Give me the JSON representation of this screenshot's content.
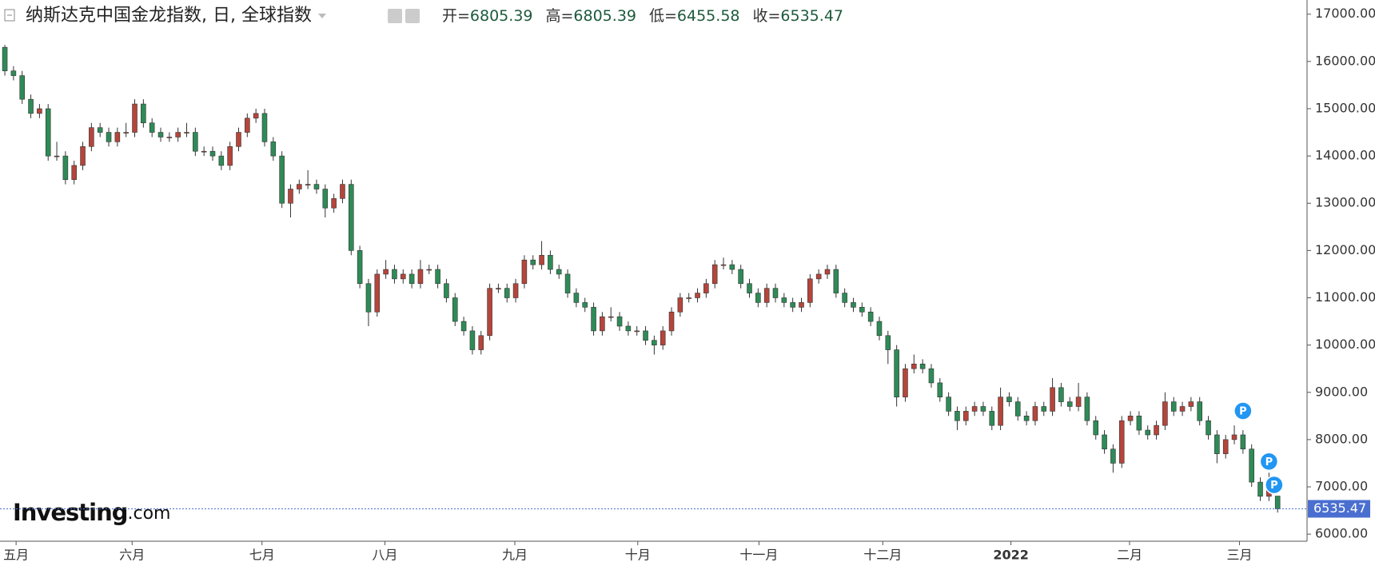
{
  "chart_data": {
    "type": "candlestick",
    "title": "纳斯达克中国金龙指数, 日, 全球指数",
    "ohlc_labels": [
      "开=",
      "高=",
      "低=",
      "收="
    ],
    "watermark": [
      "Investing",
      ".com"
    ],
    "up_color": "#b5453b",
    "down_color": "#2e8b57",
    "ohlc": [
      [
        16300,
        16350,
        15700,
        15800
      ],
      [
        15800,
        15900,
        15600,
        15700
      ],
      [
        15700,
        15800,
        15100,
        15200
      ],
      [
        15200,
        15300,
        14800,
        14900
      ],
      [
        14900,
        15100,
        14800,
        15000
      ],
      [
        15000,
        15100,
        13900,
        14000
      ],
      [
        14000,
        14300,
        13900,
        14000
      ],
      [
        14000,
        14100,
        13400,
        13500
      ],
      [
        13500,
        13900,
        13400,
        13800
      ],
      [
        13800,
        14300,
        13700,
        14200
      ],
      [
        14200,
        14700,
        14100,
        14600
      ],
      [
        14600,
        14700,
        14400,
        14500
      ],
      [
        14500,
        14600,
        14200,
        14300
      ],
      [
        14300,
        14600,
        14200,
        14500
      ],
      [
        14500,
        14700,
        14400,
        14500
      ],
      [
        14500,
        15200,
        14400,
        15100
      ],
      [
        15100,
        15200,
        14600,
        14700
      ],
      [
        14700,
        14800,
        14400,
        14500
      ],
      [
        14500,
        14600,
        14300,
        14400
      ],
      [
        14400,
        14500,
        14300,
        14400
      ],
      [
        14400,
        14600,
        14300,
        14500
      ],
      [
        14500,
        14700,
        14400,
        14500
      ],
      [
        14500,
        14600,
        14000,
        14100
      ],
      [
        14100,
        14200,
        14000,
        14100
      ],
      [
        14100,
        14200,
        13900,
        14000
      ],
      [
        14000,
        14100,
        13700,
        13800
      ],
      [
        13800,
        14300,
        13700,
        14200
      ],
      [
        14200,
        14600,
        14100,
        14500
      ],
      [
        14500,
        14900,
        14400,
        14800
      ],
      [
        14800,
        15000,
        14700,
        14900
      ],
      [
        14900,
        15000,
        14200,
        14300
      ],
      [
        14300,
        14400,
        13900,
        14000
      ],
      [
        14000,
        14100,
        12900,
        13000
      ],
      [
        13000,
        13400,
        12700,
        13300
      ],
      [
        13300,
        13500,
        13200,
        13400
      ],
      [
        13400,
        13700,
        13300,
        13400
      ],
      [
        13400,
        13500,
        13200,
        13300
      ],
      [
        13300,
        13400,
        12700,
        12900
      ],
      [
        12900,
        13200,
        12800,
        13100
      ],
      [
        13100,
        13500,
        13000,
        13400
      ],
      [
        13400,
        13500,
        11900,
        12000
      ],
      [
        12000,
        12100,
        11200,
        11300
      ],
      [
        11300,
        11400,
        10400,
        10700
      ],
      [
        10700,
        11600,
        10600,
        11500
      ],
      [
        11500,
        11800,
        11400,
        11600
      ],
      [
        11600,
        11700,
        11300,
        11400
      ],
      [
        11400,
        11600,
        11300,
        11500
      ],
      [
        11500,
        11600,
        11200,
        11300
      ],
      [
        11300,
        11800,
        11200,
        11600
      ],
      [
        11600,
        11700,
        11500,
        11600
      ],
      [
        11600,
        11700,
        11200,
        11300
      ],
      [
        11300,
        11400,
        10900,
        11000
      ],
      [
        11000,
        11100,
        10400,
        10500
      ],
      [
        10500,
        10600,
        10200,
        10300
      ],
      [
        10300,
        10400,
        9800,
        9900
      ],
      [
        9900,
        10300,
        9800,
        10200
      ],
      [
        10200,
        11300,
        10100,
        11200
      ],
      [
        11200,
        11300,
        11100,
        11200
      ],
      [
        11200,
        11300,
        10900,
        11000
      ],
      [
        11000,
        11400,
        10900,
        11300
      ],
      [
        11300,
        11900,
        11200,
        11800
      ],
      [
        11800,
        11900,
        11600,
        11700
      ],
      [
        11700,
        12200,
        11600,
        11900
      ],
      [
        11900,
        12000,
        11500,
        11600
      ],
      [
        11600,
        11700,
        11400,
        11500
      ],
      [
        11500,
        11600,
        11000,
        11100
      ],
      [
        11100,
        11200,
        10800,
        10900
      ],
      [
        10900,
        11000,
        10700,
        10800
      ],
      [
        10800,
        10900,
        10200,
        10300
      ],
      [
        10300,
        10700,
        10200,
        10600
      ],
      [
        10600,
        10800,
        10500,
        10600
      ],
      [
        10600,
        10700,
        10300,
        10400
      ],
      [
        10400,
        10500,
        10200,
        10300
      ],
      [
        10300,
        10400,
        10200,
        10300
      ],
      [
        10300,
        10400,
        10000,
        10100
      ],
      [
        10100,
        10200,
        9800,
        10000
      ],
      [
        10000,
        10400,
        9900,
        10300
      ],
      [
        10300,
        10800,
        10200,
        10700
      ],
      [
        10700,
        11100,
        10600,
        11000
      ],
      [
        11000,
        11100,
        10900,
        11000
      ],
      [
        11000,
        11200,
        10900,
        11100
      ],
      [
        11100,
        11400,
        11000,
        11300
      ],
      [
        11300,
        11800,
        11200,
        11700
      ],
      [
        11700,
        11850,
        11600,
        11700
      ],
      [
        11700,
        11800,
        11500,
        11600
      ],
      [
        11600,
        11700,
        11200,
        11300
      ],
      [
        11300,
        11400,
        11000,
        11100
      ],
      [
        11100,
        11200,
        10800,
        10900
      ],
      [
        10900,
        11300,
        10800,
        11200
      ],
      [
        11200,
        11300,
        10900,
        11000
      ],
      [
        11000,
        11100,
        10800,
        10900
      ],
      [
        10900,
        11000,
        10700,
        10800
      ],
      [
        10800,
        11000,
        10700,
        10900
      ],
      [
        10900,
        11500,
        10800,
        11400
      ],
      [
        11400,
        11600,
        11300,
        11500
      ],
      [
        11500,
        11700,
        11400,
        11600
      ],
      [
        11600,
        11700,
        11000,
        11100
      ],
      [
        11100,
        11200,
        10800,
        10900
      ],
      [
        10900,
        11000,
        10700,
        10800
      ],
      [
        10800,
        10900,
        10600,
        10700
      ],
      [
        10700,
        10800,
        10400,
        10500
      ],
      [
        10500,
        10600,
        10100,
        10200
      ],
      [
        10200,
        10300,
        9600,
        9900
      ],
      [
        9900,
        10000,
        8700,
        8900
      ],
      [
        8900,
        9600,
        8800,
        9500
      ],
      [
        9500,
        9800,
        9400,
        9600
      ],
      [
        9600,
        9700,
        9400,
        9500
      ],
      [
        9500,
        9600,
        9100,
        9200
      ],
      [
        9200,
        9300,
        8800,
        8900
      ],
      [
        8900,
        9000,
        8500,
        8600
      ],
      [
        8600,
        8700,
        8200,
        8400
      ],
      [
        8400,
        8700,
        8300,
        8600
      ],
      [
        8600,
        8800,
        8500,
        8700
      ],
      [
        8700,
        8800,
        8500,
        8600
      ],
      [
        8600,
        8700,
        8200,
        8300
      ],
      [
        8300,
        9100,
        8200,
        8900
      ],
      [
        8900,
        9000,
        8700,
        8800
      ],
      [
        8800,
        8900,
        8400,
        8500
      ],
      [
        8500,
        8600,
        8300,
        8400
      ],
      [
        8400,
        8800,
        8300,
        8700
      ],
      [
        8700,
        8800,
        8500,
        8600
      ],
      [
        8600,
        9300,
        8500,
        9100
      ],
      [
        9100,
        9200,
        8700,
        8800
      ],
      [
        8800,
        8900,
        8600,
        8700
      ],
      [
        8700,
        9200,
        8600,
        8900
      ],
      [
        8900,
        9000,
        8300,
        8400
      ],
      [
        8400,
        8500,
        8000,
        8100
      ],
      [
        8100,
        8200,
        7700,
        7800
      ],
      [
        7800,
        7900,
        7300,
        7500
      ],
      [
        7500,
        8500,
        7400,
        8400
      ],
      [
        8400,
        8600,
        8300,
        8500
      ],
      [
        8500,
        8600,
        8100,
        8200
      ],
      [
        8200,
        8300,
        8000,
        8100
      ],
      [
        8100,
        8400,
        8000,
        8300
      ],
      [
        8300,
        9000,
        8200,
        8800
      ],
      [
        8800,
        8900,
        8500,
        8600
      ],
      [
        8600,
        8800,
        8500,
        8700
      ],
      [
        8700,
        8900,
        8600,
        8800
      ],
      [
        8800,
        8900,
        8300,
        8400
      ],
      [
        8400,
        8500,
        8000,
        8100
      ],
      [
        8100,
        8200,
        7500,
        7700
      ],
      [
        7700,
        8100,
        7600,
        8000
      ],
      [
        8000,
        8300,
        7900,
        8100
      ],
      [
        8100,
        8200,
        7700,
        7800
      ],
      [
        7800,
        7900,
        7000,
        7100
      ],
      [
        7100,
        7200,
        6700,
        6800
      ],
      [
        6800,
        7300,
        6700,
        7100
      ],
      [
        6805.39,
        6805.39,
        6455.58,
        6535.47
      ]
    ],
    "xlim": [
      -0.56,
      150.4
    ],
    "xticks": [
      {
        "value": 1.3,
        "label": "五月"
      },
      {
        "value": 14.7,
        "label": "六月"
      },
      {
        "value": 29.7,
        "label": "七月"
      },
      {
        "value": 43.9,
        "label": "八月"
      },
      {
        "value": 58.9,
        "label": "九月"
      },
      {
        "value": 73.1,
        "label": "十月"
      },
      {
        "value": 87.1,
        "label": "十一月"
      },
      {
        "value": 101.4,
        "label": "十二月"
      },
      {
        "value": 116.2,
        "label": "2022"
      },
      {
        "value": 129.9,
        "label": "二月"
      },
      {
        "value": 142.6,
        "label": "三月"
      }
    ],
    "ylim": [
      5850,
      17300
    ],
    "yticks": [
      {
        "value": 6000,
        "label": "6000.00"
      },
      {
        "value": 7000,
        "label": "7000.00"
      },
      {
        "value": 8000,
        "label": "8000.00"
      },
      {
        "value": 9000,
        "label": "9000.00"
      },
      {
        "value": 10000,
        "label": "10000.00"
      },
      {
        "value": 11000,
        "label": "11000.00"
      },
      {
        "value": 12000,
        "label": "12000.00"
      },
      {
        "value": 13000,
        "label": "13000.00"
      },
      {
        "value": 14000,
        "label": "14000.00"
      },
      {
        "value": 15000,
        "label": "15000.00"
      },
      {
        "value": 16000,
        "label": "16000.00"
      },
      {
        "value": 17000,
        "label": "17000.00"
      }
    ],
    "annotations": [
      {
        "text": "P",
        "x": 143
      },
      {
        "text": "P",
        "x": 146
      },
      {
        "text": "P",
        "x": 146.6
      }
    ]
  }
}
